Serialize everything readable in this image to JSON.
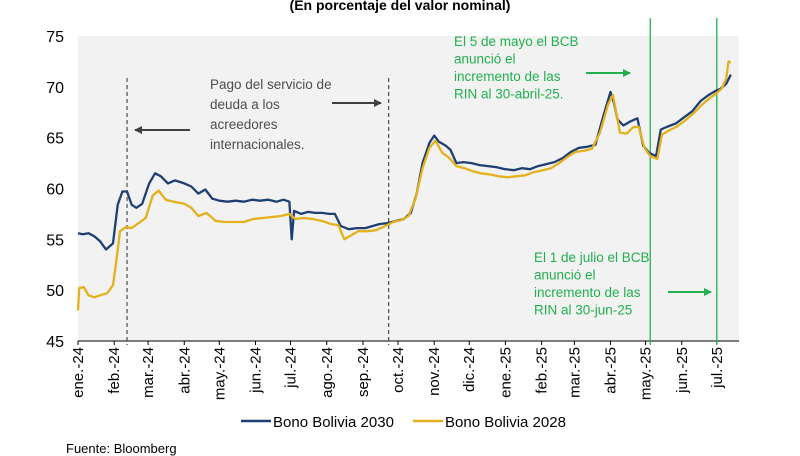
{
  "chart_data": {
    "type": "line",
    "subtitle": "(En porcentaje del valor nominal)",
    "ylim": [
      45,
      75
    ],
    "yticks": [
      45,
      50,
      55,
      60,
      65,
      70,
      75
    ],
    "xlim": [
      "2024-01-01",
      "2025-07-20"
    ],
    "x_tick_labels": [
      {
        "date": "2024-01-01",
        "label": "ene.-24"
      },
      {
        "date": "2024-02-01",
        "label": "feb.-24"
      },
      {
        "date": "2024-03-01",
        "label": "mar.-24"
      },
      {
        "date": "2024-04-01",
        "label": "abr.-24"
      },
      {
        "date": "2024-05-01",
        "label": "may.-24"
      },
      {
        "date": "2024-06-01",
        "label": "jun.-24"
      },
      {
        "date": "2024-07-01",
        "label": "jul.-24"
      },
      {
        "date": "2024-08-01",
        "label": "ago.-24"
      },
      {
        "date": "2024-09-01",
        "label": "sep.-24"
      },
      {
        "date": "2024-10-01",
        "label": "oct.-24"
      },
      {
        "date": "2024-11-01",
        "label": "nov.-24"
      },
      {
        "date": "2024-12-01",
        "label": "dic.-24"
      },
      {
        "date": "2025-01-01",
        "label": "ene.-25"
      },
      {
        "date": "2025-02-01",
        "label": "feb.-25"
      },
      {
        "date": "2025-03-01",
        "label": "mar.-25"
      },
      {
        "date": "2025-04-01",
        "label": "abr.-25"
      },
      {
        "date": "2025-05-01",
        "label": "may.-25"
      },
      {
        "date": "2025-06-01",
        "label": "jun.-25"
      },
      {
        "date": "2025-07-01",
        "label": "jul.-25"
      }
    ],
    "grid": false,
    "legend_position": "bottom",
    "series": [
      {
        "name": "Bono Bolivia 2030",
        "color": "#1f3f73",
        "points": [
          [
            "2024-01-01",
            55.6
          ],
          [
            "2024-01-05",
            55.5
          ],
          [
            "2024-01-10",
            55.6
          ],
          [
            "2024-01-15",
            55.3
          ],
          [
            "2024-01-20",
            54.8
          ],
          [
            "2024-01-25",
            54.0
          ],
          [
            "2024-01-31",
            54.6
          ],
          [
            "2024-02-04",
            58.4
          ],
          [
            "2024-02-08",
            59.7
          ],
          [
            "2024-02-12",
            59.7
          ],
          [
            "2024-02-16",
            58.4
          ],
          [
            "2024-02-20",
            58.1
          ],
          [
            "2024-02-25",
            58.5
          ],
          [
            "2024-03-02",
            60.5
          ],
          [
            "2024-03-07",
            61.5
          ],
          [
            "2024-03-12",
            61.2
          ],
          [
            "2024-03-18",
            60.5
          ],
          [
            "2024-03-24",
            60.8
          ],
          [
            "2024-04-01",
            60.5
          ],
          [
            "2024-04-07",
            60.2
          ],
          [
            "2024-04-13",
            59.5
          ],
          [
            "2024-04-19",
            59.9
          ],
          [
            "2024-04-25",
            59.0
          ],
          [
            "2024-05-01",
            58.8
          ],
          [
            "2024-05-08",
            58.7
          ],
          [
            "2024-05-15",
            58.8
          ],
          [
            "2024-05-22",
            58.7
          ],
          [
            "2024-05-29",
            58.9
          ],
          [
            "2024-06-05",
            58.8
          ],
          [
            "2024-06-12",
            58.9
          ],
          [
            "2024-06-19",
            58.7
          ],
          [
            "2024-06-25",
            58.9
          ],
          [
            "2024-06-30",
            58.7
          ],
          [
            "2024-07-02",
            55.0
          ],
          [
            "2024-07-04",
            57.8
          ],
          [
            "2024-07-10",
            57.5
          ],
          [
            "2024-07-16",
            57.7
          ],
          [
            "2024-07-22",
            57.6
          ],
          [
            "2024-07-28",
            57.6
          ],
          [
            "2024-08-03",
            57.5
          ],
          [
            "2024-08-08",
            57.5
          ],
          [
            "2024-08-13",
            56.3
          ],
          [
            "2024-08-20",
            56.0
          ],
          [
            "2024-08-27",
            56.1
          ],
          [
            "2024-09-03",
            56.1
          ],
          [
            "2024-09-09",
            56.3
          ],
          [
            "2024-09-15",
            56.5
          ],
          [
            "2024-09-22",
            56.6
          ],
          [
            "2024-09-29",
            56.8
          ],
          [
            "2024-10-06",
            57.0
          ],
          [
            "2024-10-12",
            57.6
          ],
          [
            "2024-10-17",
            59.5
          ],
          [
            "2024-10-22",
            62.5
          ],
          [
            "2024-10-28",
            64.5
          ],
          [
            "2024-11-01",
            65.2
          ],
          [
            "2024-11-05",
            64.6
          ],
          [
            "2024-11-11",
            64.2
          ],
          [
            "2024-11-15",
            63.8
          ],
          [
            "2024-11-20",
            62.5
          ],
          [
            "2024-11-26",
            62.6
          ],
          [
            "2024-12-03",
            62.5
          ],
          [
            "2024-12-10",
            62.3
          ],
          [
            "2024-12-17",
            62.2
          ],
          [
            "2024-12-24",
            62.1
          ],
          [
            "2025-01-01",
            61.9
          ],
          [
            "2025-01-08",
            61.8
          ],
          [
            "2025-01-15",
            62.0
          ],
          [
            "2025-01-22",
            61.9
          ],
          [
            "2025-01-29",
            62.2
          ],
          [
            "2025-02-05",
            62.4
          ],
          [
            "2025-02-12",
            62.6
          ],
          [
            "2025-02-19",
            63.0
          ],
          [
            "2025-02-26",
            63.6
          ],
          [
            "2025-03-05",
            64.0
          ],
          [
            "2025-03-12",
            64.1
          ],
          [
            "2025-03-19",
            64.3
          ],
          [
            "2025-03-26",
            67.2
          ],
          [
            "2025-04-01",
            69.5
          ],
          [
            "2025-04-04",
            68.4
          ],
          [
            "2025-04-07",
            66.8
          ],
          [
            "2025-04-12",
            66.2
          ],
          [
            "2025-04-18",
            66.6
          ],
          [
            "2025-04-24",
            66.9
          ],
          [
            "2025-04-29",
            64.2
          ],
          [
            "2025-05-04",
            63.5
          ],
          [
            "2025-05-10",
            63.2
          ],
          [
            "2025-05-14",
            65.8
          ],
          [
            "2025-05-20",
            66.1
          ],
          [
            "2025-05-27",
            66.4
          ],
          [
            "2025-06-03",
            67.0
          ],
          [
            "2025-06-10",
            67.6
          ],
          [
            "2025-06-17",
            68.6
          ],
          [
            "2025-06-24",
            69.2
          ],
          [
            "2025-06-30",
            69.6
          ],
          [
            "2025-07-04",
            69.8
          ],
          [
            "2025-07-09",
            70.3
          ],
          [
            "2025-07-13",
            71.2
          ]
        ]
      },
      {
        "name": "Bono Bolivia 2028",
        "color": "#e3b11b",
        "points": [
          [
            "2024-01-01",
            48.0
          ],
          [
            "2024-01-02",
            50.2
          ],
          [
            "2024-01-06",
            50.3
          ],
          [
            "2024-01-10",
            49.5
          ],
          [
            "2024-01-15",
            49.3
          ],
          [
            "2024-01-20",
            49.5
          ],
          [
            "2024-01-26",
            49.7
          ],
          [
            "2024-01-31",
            50.5
          ],
          [
            "2024-02-03",
            53.0
          ],
          [
            "2024-02-06",
            55.8
          ],
          [
            "2024-02-11",
            56.2
          ],
          [
            "2024-02-16",
            56.1
          ],
          [
            "2024-02-22",
            56.6
          ],
          [
            "2024-02-28",
            57.1
          ],
          [
            "2024-03-05",
            59.3
          ],
          [
            "2024-03-10",
            59.8
          ],
          [
            "2024-03-16",
            58.9
          ],
          [
            "2024-03-23",
            58.7
          ],
          [
            "2024-04-01",
            58.5
          ],
          [
            "2024-04-07",
            58.1
          ],
          [
            "2024-04-13",
            57.3
          ],
          [
            "2024-04-20",
            57.6
          ],
          [
            "2024-04-28",
            56.8
          ],
          [
            "2024-05-06",
            56.7
          ],
          [
            "2024-05-14",
            56.7
          ],
          [
            "2024-05-22",
            56.7
          ],
          [
            "2024-05-30",
            57.0
          ],
          [
            "2024-06-07",
            57.1
          ],
          [
            "2024-06-15",
            57.2
          ],
          [
            "2024-06-23",
            57.3
          ],
          [
            "2024-06-30",
            57.5
          ],
          [
            "2024-07-05",
            57.0
          ],
          [
            "2024-07-12",
            57.1
          ],
          [
            "2024-07-20",
            57.0
          ],
          [
            "2024-07-28",
            56.8
          ],
          [
            "2024-08-05",
            56.5
          ],
          [
            "2024-08-11",
            56.4
          ],
          [
            "2024-08-16",
            55.0
          ],
          [
            "2024-08-22",
            55.4
          ],
          [
            "2024-08-28",
            55.8
          ],
          [
            "2024-09-05",
            55.8
          ],
          [
            "2024-09-12",
            55.9
          ],
          [
            "2024-09-20",
            56.3
          ],
          [
            "2024-09-27",
            56.7
          ],
          [
            "2024-10-04",
            56.9
          ],
          [
            "2024-10-10",
            57.3
          ],
          [
            "2024-10-16",
            59.0
          ],
          [
            "2024-10-22",
            62.0
          ],
          [
            "2024-10-28",
            64.0
          ],
          [
            "2024-11-02",
            64.7
          ],
          [
            "2024-11-08",
            63.5
          ],
          [
            "2024-11-14",
            63.0
          ],
          [
            "2024-11-20",
            62.2
          ],
          [
            "2024-11-27",
            62.0
          ],
          [
            "2024-12-04",
            61.7
          ],
          [
            "2024-12-11",
            61.5
          ],
          [
            "2024-12-18",
            61.4
          ],
          [
            "2024-12-26",
            61.2
          ],
          [
            "2025-01-03",
            61.1
          ],
          [
            "2025-01-10",
            61.2
          ],
          [
            "2025-01-18",
            61.3
          ],
          [
            "2025-01-25",
            61.6
          ],
          [
            "2025-02-02",
            61.8
          ],
          [
            "2025-02-09",
            62.0
          ],
          [
            "2025-02-16",
            62.5
          ],
          [
            "2025-02-23",
            63.1
          ],
          [
            "2025-03-02",
            63.6
          ],
          [
            "2025-03-09",
            63.7
          ],
          [
            "2025-03-16",
            63.9
          ],
          [
            "2025-03-23",
            65.5
          ],
          [
            "2025-03-30",
            68.3
          ],
          [
            "2025-04-03",
            69.2
          ],
          [
            "2025-04-06",
            67.4
          ],
          [
            "2025-04-09",
            65.5
          ],
          [
            "2025-04-15",
            65.4
          ],
          [
            "2025-04-20",
            66.0
          ],
          [
            "2025-04-25",
            66.1
          ],
          [
            "2025-04-30",
            64.0
          ],
          [
            "2025-05-05",
            63.2
          ],
          [
            "2025-05-11",
            62.9
          ],
          [
            "2025-05-15",
            65.3
          ],
          [
            "2025-05-21",
            65.7
          ],
          [
            "2025-05-28",
            66.1
          ],
          [
            "2025-06-04",
            66.7
          ],
          [
            "2025-06-11",
            67.4
          ],
          [
            "2025-06-18",
            68.2
          ],
          [
            "2025-06-25",
            68.9
          ],
          [
            "2025-06-30",
            69.3
          ],
          [
            "2025-07-05",
            69.8
          ],
          [
            "2025-07-09",
            70.8
          ],
          [
            "2025-07-11",
            72.5
          ],
          [
            "2025-07-13",
            72.4
          ]
        ]
      }
    ],
    "reference_lines": [
      {
        "date": "2024-02-12",
        "style": "dashed",
        "color": "#4d4d4d"
      },
      {
        "date": "2024-09-23",
        "style": "dashed",
        "color": "#4d4d4d"
      },
      {
        "date": "2025-05-05",
        "style": "solid",
        "color": "#20b04e"
      },
      {
        "date": "2025-07-01",
        "style": "solid",
        "color": "#20b04e"
      }
    ],
    "annotations": [
      {
        "id": "payment",
        "color": "#4d4d4d",
        "lines": [
          "Pago del servicio de",
          "deuda a los",
          "acreedores",
          "internacionales."
        ]
      },
      {
        "id": "may5",
        "color": "#20b04e",
        "lines": [
          "El 5 de mayo el BCB",
          "anunció el",
          "incremento de las",
          "RIN al 30-abril-25."
        ]
      },
      {
        "id": "jul1",
        "color": "#20b04e",
        "lines": [
          "El 1 de julio el BCB",
          "anunció el",
          "incremento de las",
          "RIN al 30-jun-25"
        ]
      }
    ]
  },
  "source": "Fuente: Bloomberg"
}
